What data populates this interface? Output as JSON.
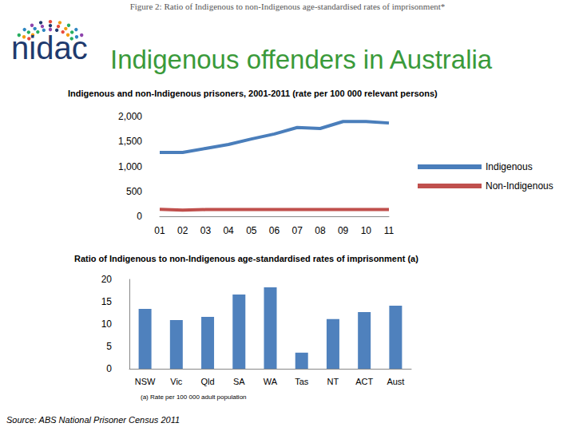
{
  "header": {
    "caption": "Figure 2: Ratio of Indigenous to non-Indigenous age-standardised rates of imprisonment*",
    "logo": "nidac",
    "title": "Indigenous offenders in Australia"
  },
  "source": "Source: ABS National Prisoner Census 2011",
  "chart_data": [
    {
      "type": "line",
      "title": "Indigenous and non-Indigenous prisoners, 2001-2011 (rate per 100 000 relevant persons)",
      "categories": [
        "01",
        "02",
        "03",
        "04",
        "05",
        "06",
        "07",
        "08",
        "09",
        "10",
        "11"
      ],
      "series": [
        {
          "name": "Indigenous",
          "color": "#4a7ebb",
          "values": [
            1280,
            1280,
            1360,
            1440,
            1550,
            1650,
            1780,
            1760,
            1900,
            1900,
            1870
          ]
        },
        {
          "name": "Non-Indigenous",
          "color": "#c0504d",
          "values": [
            140,
            125,
            135,
            135,
            135,
            135,
            135,
            135,
            135,
            135,
            135
          ]
        }
      ],
      "ylim": [
        0,
        2000
      ],
      "yticks": [
        0,
        500,
        1000,
        1500,
        2000
      ],
      "grid": false,
      "legend": "right"
    },
    {
      "type": "bar",
      "title": "Ratio of Indigenous to non-Indigenous age-standardised rates of imprisonment (a)",
      "categories": [
        "NSW",
        "Vic",
        "Qld",
        "SA",
        "WA",
        "Tas",
        "NT",
        "ACT",
        "Aust"
      ],
      "values": [
        13.4,
        10.9,
        11.6,
        16.6,
        18.2,
        3.6,
        11.1,
        12.7,
        14.1
      ],
      "color": "#4f81bd",
      "ylim": [
        0,
        20
      ],
      "yticks": [
        0,
        5,
        10,
        15,
        20
      ],
      "grid": false,
      "annotations": [
        "(a) Rate per 100 000 adult population"
      ]
    }
  ]
}
